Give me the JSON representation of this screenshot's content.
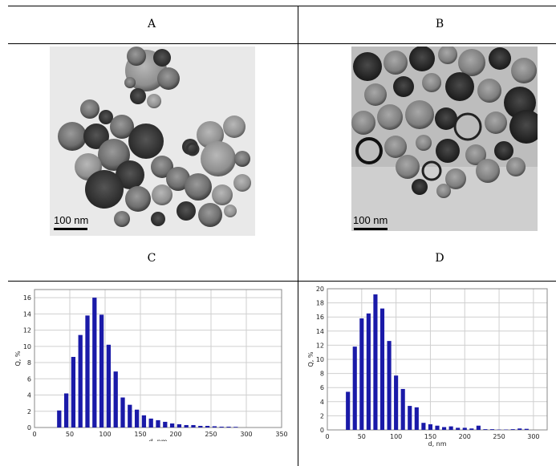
{
  "panels": {
    "a": {
      "label": "A",
      "scale_label": "100 nm"
    },
    "b": {
      "label": "B",
      "scale_label": "100 nm"
    },
    "c": {
      "label": "C"
    },
    "d": {
      "label": "D"
    }
  },
  "chart_data": [
    {
      "type": "bar",
      "panel": "C",
      "xlabel": "d, nm",
      "ylabel": "Q, %",
      "xlim": [
        0,
        350
      ],
      "ylim": [
        0,
        17
      ],
      "xticks": [
        0,
        50,
        100,
        150,
        200,
        250,
        300,
        350
      ],
      "yticks": [
        0,
        2,
        4,
        6,
        8,
        10,
        12,
        14,
        16
      ],
      "grid": true,
      "bar_color": "#1a1aa8",
      "x": [
        35,
        45,
        55,
        65,
        75,
        85,
        95,
        105,
        115,
        125,
        135,
        145,
        155,
        165,
        175,
        185,
        195,
        205,
        215,
        225,
        235,
        245,
        255,
        265,
        275,
        285
      ],
      "values": [
        2.1,
        4.2,
        8.7,
        11.4,
        13.8,
        16.0,
        13.9,
        10.2,
        6.9,
        3.7,
        2.8,
        2.2,
        1.5,
        1.1,
        0.9,
        0.7,
        0.5,
        0.4,
        0.3,
        0.3,
        0.2,
        0.2,
        0.15,
        0.1,
        0.1,
        0.08
      ]
    },
    {
      "type": "bar",
      "panel": "D",
      "xlabel": "d, nm",
      "ylabel": "Q, %",
      "xlim": [
        0,
        320
      ],
      "ylim": [
        0,
        20
      ],
      "xticks": [
        0,
        50,
        100,
        150,
        200,
        250,
        300
      ],
      "yticks": [
        0,
        2,
        4,
        6,
        8,
        10,
        12,
        14,
        16,
        18,
        20
      ],
      "grid": true,
      "bar_color": "#1a1aa8",
      "x": [
        30,
        40,
        50,
        60,
        70,
        80,
        90,
        100,
        110,
        120,
        130,
        140,
        150,
        160,
        170,
        180,
        190,
        200,
        210,
        220,
        230,
        240,
        250,
        260,
        270,
        280,
        290
      ],
      "values": [
        5.4,
        11.8,
        15.8,
        16.5,
        19.2,
        17.2,
        12.6,
        7.7,
        5.8,
        3.4,
        3.2,
        1.0,
        0.8,
        0.6,
        0.4,
        0.5,
        0.3,
        0.3,
        0.2,
        0.6,
        0.1,
        0.1,
        0.05,
        0.05,
        0.1,
        0.2,
        0.15
      ]
    }
  ]
}
